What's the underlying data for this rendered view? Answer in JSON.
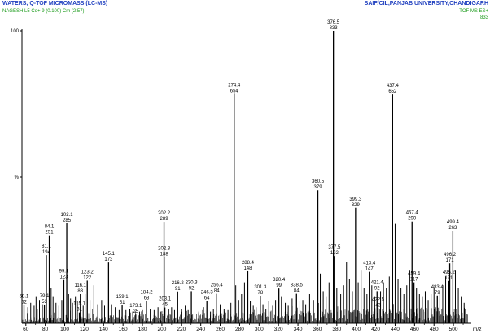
{
  "header": {
    "instrument": "WATERS, Q-TOF MICROMASS (LC-MS)",
    "lab": "SAIF/CIL,PANJAB UNIVERSITY,CHANDIGARH",
    "sample": "NAGESH L5 Co+ 9 (0.100) Cm (2:57)",
    "mode": "TOF MS ES+",
    "max_intensity": "833",
    "colors": {
      "title": "#1f3fbf",
      "subtitle": "#1a9a1a",
      "trace": "#000000"
    }
  },
  "chart_data": {
    "type": "bar",
    "title": "",
    "xlabel": "m/z",
    "ylabel": "%",
    "xlim": [
      56,
      515
    ],
    "ylim": [
      0,
      100
    ],
    "x_ticks": [
      60,
      80,
      100,
      120,
      140,
      160,
      180,
      200,
      220,
      240,
      260,
      280,
      300,
      320,
      340,
      360,
      380,
      400,
      420,
      440,
      460,
      480,
      500
    ],
    "y_tick_labels": [
      {
        "value": 100,
        "label": "100"
      },
      {
        "value": 50,
        "label": "%"
      }
    ],
    "grid": false,
    "legend": "none",
    "peaks": [
      {
        "mz": 58.1,
        "rel": 6.2,
        "label": "58.1",
        "intensity": "52"
      },
      {
        "mz": 79.1,
        "rel": 6.4,
        "label": "79.1",
        "intensity": "53"
      },
      {
        "mz": 81.1,
        "rel": 23.3,
        "label": "81.1",
        "intensity": "194"
      },
      {
        "mz": 84.1,
        "rel": 30.1,
        "label": "84.1",
        "intensity": "251"
      },
      {
        "mz": 99.1,
        "rel": 14.8,
        "label": "99.1",
        "intensity": "123"
      },
      {
        "mz": 102.1,
        "rel": 34.2,
        "label": "102.1",
        "intensity": "285"
      },
      {
        "mz": 115.1,
        "rel": 3.7,
        "label": "115.1",
        "intensity": "31"
      },
      {
        "mz": 116.1,
        "rel": 10.0,
        "label": "116.1",
        "intensity": "83"
      },
      {
        "mz": 123.2,
        "rel": 14.6,
        "label": "123.2",
        "intensity": "122"
      },
      {
        "mz": 145.1,
        "rel": 20.8,
        "label": "145.1",
        "intensity": "173"
      },
      {
        "mz": 159.1,
        "rel": 6.1,
        "label": "159.1",
        "intensity": "51"
      },
      {
        "mz": 173.1,
        "rel": 3.0,
        "label": "173.1",
        "intensity": "25"
      },
      {
        "mz": 184.2,
        "rel": 7.6,
        "label": "184.2",
        "intensity": "63"
      },
      {
        "mz": 202.2,
        "rel": 34.7,
        "label": "202.2",
        "intensity": "289"
      },
      {
        "mz": 202.3,
        "rel": 22.6,
        "label": "202.3",
        "intensity": "188"
      },
      {
        "mz": 203.1,
        "rel": 5.4,
        "label": "203.1",
        "intensity": "45"
      },
      {
        "mz": 216.2,
        "rel": 10.9,
        "label": "216.2",
        "intensity": "91"
      },
      {
        "mz": 230.3,
        "rel": 11.0,
        "label": "230.3",
        "intensity": "92"
      },
      {
        "mz": 246.3,
        "rel": 7.7,
        "label": "246.3",
        "intensity": "64"
      },
      {
        "mz": 256.4,
        "rel": 10.1,
        "label": "256.4",
        "intensity": "84"
      },
      {
        "mz": 274.4,
        "rel": 78.5,
        "label": "274.4",
        "intensity": "654"
      },
      {
        "mz": 288.4,
        "rel": 17.8,
        "label": "288.4",
        "intensity": "148"
      },
      {
        "mz": 301.3,
        "rel": 9.4,
        "label": "301.3",
        "intensity": "78"
      },
      {
        "mz": 320.4,
        "rel": 11.9,
        "label": "320.4",
        "intensity": "99"
      },
      {
        "mz": 338.5,
        "rel": 10.1,
        "label": "338.5",
        "intensity": "84"
      },
      {
        "mz": 360.5,
        "rel": 45.5,
        "label": "360.5",
        "intensity": "379"
      },
      {
        "mz": 376.5,
        "rel": 100.0,
        "label": "376.5",
        "intensity": "833"
      },
      {
        "mz": 377.5,
        "rel": 23.0,
        "label": "377.5",
        "intensity": "192"
      },
      {
        "mz": 399.3,
        "rel": 39.5,
        "label": "399.3",
        "intensity": "329"
      },
      {
        "mz": 413.4,
        "rel": 17.6,
        "label": "413.4",
        "intensity": "147"
      },
      {
        "mz": 421.4,
        "rel": 11.0,
        "label": "421.4",
        "intensity": "92"
      },
      {
        "mz": 422.5,
        "rel": 5.2,
        "label": "422.5",
        "intensity": "43"
      },
      {
        "mz": 437.4,
        "rel": 78.3,
        "label": "437.4",
        "intensity": "652"
      },
      {
        "mz": 457.4,
        "rel": 34.8,
        "label": "457.4",
        "intensity": "290"
      },
      {
        "mz": 459.4,
        "rel": 14.0,
        "label": "459.4",
        "intensity": "117"
      },
      {
        "mz": 483.4,
        "rel": 9.5,
        "label": "483.4",
        "intensity": "79"
      },
      {
        "mz": 495.2,
        "rel": 14.5,
        "label": "495.2",
        "intensity": "121"
      },
      {
        "mz": 496.2,
        "rel": 20.5,
        "label": "496.2",
        "intensity": "171"
      },
      {
        "mz": 499.4,
        "rel": 31.6,
        "label": "499.4",
        "intensity": "263"
      }
    ],
    "unlabeled_peaks": [
      {
        "mz": 62.0,
        "rel": 5.5
      },
      {
        "mz": 65.0,
        "rel": 7.0
      },
      {
        "mz": 68.5,
        "rel": 6.0
      },
      {
        "mz": 70.5,
        "rel": 9.0
      },
      {
        "mz": 74.0,
        "rel": 8.0
      },
      {
        "mz": 77.0,
        "rel": 6.5
      },
      {
        "mz": 86.0,
        "rel": 12.0
      },
      {
        "mz": 88.0,
        "rel": 9.0
      },
      {
        "mz": 91.0,
        "rel": 7.0
      },
      {
        "mz": 94.0,
        "rel": 6.0
      },
      {
        "mz": 97.0,
        "rel": 8.0
      },
      {
        "mz": 104.0,
        "rel": 10.0
      },
      {
        "mz": 106.0,
        "rel": 8.5
      },
      {
        "mz": 108.0,
        "rel": 7.0
      },
      {
        "mz": 111.0,
        "rel": 9.0
      },
      {
        "mz": 113.0,
        "rel": 7.5
      },
      {
        "mz": 119.0,
        "rel": 6.0
      },
      {
        "mz": 121.0,
        "rel": 10.0
      },
      {
        "mz": 126.0,
        "rel": 8.0
      },
      {
        "mz": 130.0,
        "rel": 13.0
      },
      {
        "mz": 134.0,
        "rel": 6.5
      },
      {
        "mz": 138.0,
        "rel": 8.0
      },
      {
        "mz": 141.0,
        "rel": 6.0
      },
      {
        "mz": 148.0,
        "rel": 6.5
      },
      {
        "mz": 152.0,
        "rel": 5.5
      },
      {
        "mz": 156.0,
        "rel": 4.5
      },
      {
        "mz": 163.0,
        "rel": 4.5
      },
      {
        "mz": 167.0,
        "rel": 5.0
      },
      {
        "mz": 170.0,
        "rel": 4.0
      },
      {
        "mz": 177.0,
        "rel": 4.0
      },
      {
        "mz": 180.0,
        "rel": 4.5
      },
      {
        "mz": 188.0,
        "rel": 5.0
      },
      {
        "mz": 192.0,
        "rel": 4.5
      },
      {
        "mz": 196.0,
        "rel": 5.5
      },
      {
        "mz": 199.0,
        "rel": 4.0
      },
      {
        "mz": 207.0,
        "rel": 5.0
      },
      {
        "mz": 210.0,
        "rel": 5.5
      },
      {
        "mz": 213.0,
        "rel": 4.5
      },
      {
        "mz": 220.0,
        "rel": 5.0
      },
      {
        "mz": 224.0,
        "rel": 6.0
      },
      {
        "mz": 227.0,
        "rel": 4.5
      },
      {
        "mz": 234.0,
        "rel": 5.0
      },
      {
        "mz": 238.0,
        "rel": 4.0
      },
      {
        "mz": 242.0,
        "rel": 4.5
      },
      {
        "mz": 250.0,
        "rel": 4.0
      },
      {
        "mz": 253.0,
        "rel": 5.0
      },
      {
        "mz": 260.0,
        "rel": 6.5
      },
      {
        "mz": 264.0,
        "rel": 5.0
      },
      {
        "mz": 268.0,
        "rel": 4.5
      },
      {
        "mz": 271.0,
        "rel": 7.0
      },
      {
        "mz": 276.0,
        "rel": 13.0
      },
      {
        "mz": 279.0,
        "rel": 8.0
      },
      {
        "mz": 282.0,
        "rel": 10.0
      },
      {
        "mz": 285.0,
        "rel": 14.0
      },
      {
        "mz": 291.0,
        "rel": 7.5
      },
      {
        "mz": 294.0,
        "rel": 6.0
      },
      {
        "mz": 297.0,
        "rel": 5.5
      },
      {
        "mz": 304.0,
        "rel": 6.5
      },
      {
        "mz": 307.0,
        "rel": 5.0
      },
      {
        "mz": 310.0,
        "rel": 7.5
      },
      {
        "mz": 314.0,
        "rel": 6.0
      },
      {
        "mz": 317.0,
        "rel": 8.0
      },
      {
        "mz": 323.0,
        "rel": 9.0
      },
      {
        "mz": 327.0,
        "rel": 7.0
      },
      {
        "mz": 330.0,
        "rel": 6.0
      },
      {
        "mz": 334.0,
        "rel": 8.5
      },
      {
        "mz": 342.0,
        "rel": 7.5
      },
      {
        "mz": 345.0,
        "rel": 8.0
      },
      {
        "mz": 348.0,
        "rel": 6.5
      },
      {
        "mz": 352.0,
        "rel": 10.0
      },
      {
        "mz": 356.0,
        "rel": 8.0
      },
      {
        "mz": 363.0,
        "rel": 17.0
      },
      {
        "mz": 366.0,
        "rel": 11.0
      },
      {
        "mz": 369.0,
        "rel": 9.0
      },
      {
        "mz": 372.0,
        "rel": 14.0
      },
      {
        "mz": 380.0,
        "rel": 12.0
      },
      {
        "mz": 384.0,
        "rel": 10.0
      },
      {
        "mz": 387.0,
        "rel": 13.0
      },
      {
        "mz": 390.0,
        "rel": 21.0
      },
      {
        "mz": 393.0,
        "rel": 15.0
      },
      {
        "mz": 396.0,
        "rel": 11.0
      },
      {
        "mz": 402.0,
        "rel": 14.0
      },
      {
        "mz": 405.0,
        "rel": 18.0
      },
      {
        "mz": 408.0,
        "rel": 12.0
      },
      {
        "mz": 411.0,
        "rel": 10.0
      },
      {
        "mz": 416.0,
        "rel": 13.0
      },
      {
        "mz": 419.0,
        "rel": 9.0
      },
      {
        "mz": 425.0,
        "rel": 11.0
      },
      {
        "mz": 428.0,
        "rel": 14.0
      },
      {
        "mz": 431.0,
        "rel": 12.0
      },
      {
        "mz": 434.0,
        "rel": 16.0
      },
      {
        "mz": 440.0,
        "rel": 34.0
      },
      {
        "mz": 443.0,
        "rel": 15.0
      },
      {
        "mz": 446.0,
        "rel": 12.0
      },
      {
        "mz": 449.0,
        "rel": 10.0
      },
      {
        "mz": 452.0,
        "rel": 13.0
      },
      {
        "mz": 455.0,
        "rel": 18.0
      },
      {
        "mz": 462.0,
        "rel": 12.0
      },
      {
        "mz": 465.0,
        "rel": 10.0
      },
      {
        "mz": 468.0,
        "rel": 9.0
      },
      {
        "mz": 471.0,
        "rel": 11.0
      },
      {
        "mz": 474.0,
        "rel": 8.0
      },
      {
        "mz": 477.0,
        "rel": 10.0
      },
      {
        "mz": 480.0,
        "rel": 12.0
      },
      {
        "mz": 486.0,
        "rel": 11.0
      },
      {
        "mz": 489.0,
        "rel": 13.0
      },
      {
        "mz": 492.0,
        "rel": 16.0
      },
      {
        "mz": 502.0,
        "rel": 18.0
      },
      {
        "mz": 505.0,
        "rel": 12.0
      },
      {
        "mz": 508.0,
        "rel": 9.0
      },
      {
        "mz": 511.0,
        "rel": 7.0
      }
    ]
  }
}
